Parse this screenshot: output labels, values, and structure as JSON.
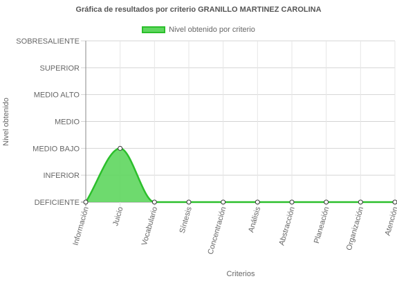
{
  "chart_data": {
    "type": "area",
    "title": "Gráfica de resultados por criterio GRANILLO MARTINEZ CAROLINA",
    "xlabel": "Criterios",
    "ylabel": "Nivel obtenido",
    "categories": [
      "Información",
      "Juicio",
      "Vocabulario",
      "Síntesis",
      "Concentración",
      "Análisis",
      "Abstracción",
      "Planeación",
      "Organización",
      "Atención"
    ],
    "y_levels": [
      "DEFICIENTE",
      "INFERIOR",
      "MEDIO BAJO",
      "MEDIO",
      "MEDIO ALTO",
      "SUPERIOR",
      "SOBRESALIENTE"
    ],
    "ylim": [
      0,
      6
    ],
    "series": [
      {
        "name": "Nivel obtenido por criterio",
        "values": [
          0,
          2,
          0,
          0,
          0,
          0,
          0,
          0,
          0,
          0
        ]
      }
    ],
    "legend_position": "top",
    "grid": true,
    "colors": {
      "line": "#2bbf2b",
      "fill": "#5ed65e",
      "grid": "#d4d4d4",
      "axis": "#888888",
      "text": "#666666"
    }
  }
}
